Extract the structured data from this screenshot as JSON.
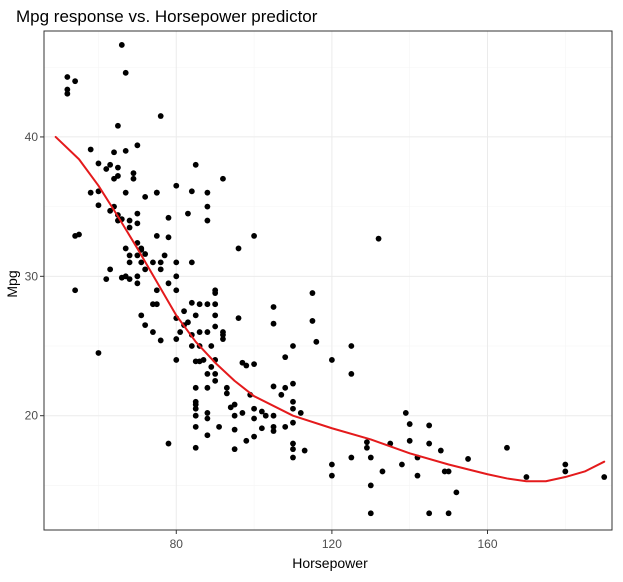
{
  "chart_data": {
    "type": "scatter",
    "title": "Mpg response vs. Horsepower predictor",
    "xlabel": "Horsepower",
    "ylabel": "Mpg",
    "xlim": [
      46,
      192
    ],
    "ylim": [
      11.8,
      47.6
    ],
    "x_major_ticks": [
      80,
      120,
      160
    ],
    "y_major_ticks": [
      20,
      30,
      40
    ],
    "x_minor_ticks": [
      60,
      100,
      140,
      180
    ],
    "y_minor_ticks": [
      15,
      25,
      35,
      45
    ],
    "grid": true,
    "panel_border": true,
    "colors": {
      "points": "#000000",
      "smooth_line": "#e41a1c",
      "grid_major": "#ebebeb",
      "grid_minor": "#f5f5f5",
      "panel_border": "#333333"
    },
    "series": [
      {
        "type": "scatter",
        "points": [
          [
            52,
            44.3
          ],
          [
            52,
            43.4
          ],
          [
            52,
            43.1
          ],
          [
            54,
            44.0
          ],
          [
            54,
            32.9
          ],
          [
            55,
            33.0
          ],
          [
            54,
            29.0
          ],
          [
            58,
            36.0
          ],
          [
            58,
            39.1
          ],
          [
            60,
            38.1
          ],
          [
            60,
            36.1
          ],
          [
            60,
            35.1
          ],
          [
            60,
            24.5
          ],
          [
            62,
            29.8
          ],
          [
            62,
            37.7
          ],
          [
            63,
            38.0
          ],
          [
            63,
            34.7
          ],
          [
            63,
            30.5
          ],
          [
            64,
            35.0
          ],
          [
            64,
            37.0
          ],
          [
            64,
            38.9
          ],
          [
            65,
            34.0
          ],
          [
            65,
            34.4
          ],
          [
            65,
            37.2
          ],
          [
            65,
            37.8
          ],
          [
            66,
            29.9
          ],
          [
            66,
            34.1
          ],
          [
            66,
            46.6
          ],
          [
            65,
            40.8
          ],
          [
            67,
            39.0
          ],
          [
            67,
            36.0
          ],
          [
            67,
            30.0
          ],
          [
            67,
            32.0
          ],
          [
            67,
            44.6
          ],
          [
            68,
            34.0
          ],
          [
            68,
            31.5
          ],
          [
            68,
            33.5
          ],
          [
            68,
            29.8
          ],
          [
            68,
            31.0
          ],
          [
            69,
            37.4
          ],
          [
            69,
            37.0
          ],
          [
            70,
            30.0
          ],
          [
            70,
            31.5
          ],
          [
            70,
            34.5
          ],
          [
            70,
            32.4
          ],
          [
            70,
            33.8
          ],
          [
            70,
            39.4
          ],
          [
            70,
            29.5
          ],
          [
            71,
            27.2
          ],
          [
            71,
            32.0
          ],
          [
            71,
            31.0
          ],
          [
            71,
            31.9
          ],
          [
            72,
            26.5
          ],
          [
            72,
            30.5
          ],
          [
            72,
            31.6
          ],
          [
            72,
            35.7
          ],
          [
            74,
            31.0
          ],
          [
            74,
            26.0
          ],
          [
            74,
            28.0
          ],
          [
            75,
            36.0
          ],
          [
            75,
            29.0
          ],
          [
            75,
            32.9
          ],
          [
            75,
            28.0
          ],
          [
            75,
            36.0
          ],
          [
            76,
            31.0
          ],
          [
            76,
            41.5
          ],
          [
            76,
            25.4
          ],
          [
            76,
            30.5
          ],
          [
            77,
            31.5
          ],
          [
            78,
            29.5
          ],
          [
            78,
            18.0
          ],
          [
            78,
            34.2
          ],
          [
            78,
            32.8
          ],
          [
            80,
            36.5
          ],
          [
            80,
            27.0
          ],
          [
            80,
            31.0
          ],
          [
            80,
            24.0
          ],
          [
            80,
            25.5
          ],
          [
            80,
            29.0
          ],
          [
            80,
            30.0
          ],
          [
            81,
            26.0
          ],
          [
            82,
            26.5
          ],
          [
            82,
            27.5
          ],
          [
            83,
            26.7
          ],
          [
            83,
            34.5
          ],
          [
            84,
            25.8
          ],
          [
            84,
            31.0
          ],
          [
            84,
            28.1
          ],
          [
            84,
            36.1
          ],
          [
            84,
            25.0
          ],
          [
            85,
            23.9
          ],
          [
            85,
            22.0
          ],
          [
            85,
            38.0
          ],
          [
            85,
            27.2
          ],
          [
            85,
            21.0
          ],
          [
            85,
            20.5
          ],
          [
            85,
            20.8
          ],
          [
            85,
            20.0
          ],
          [
            85,
            19.2
          ],
          [
            85,
            17.7
          ],
          [
            86,
            25.0
          ],
          [
            86,
            26.0
          ],
          [
            86,
            28.0
          ],
          [
            86,
            23.9
          ],
          [
            87,
            24.0
          ],
          [
            88,
            23.0
          ],
          [
            88,
            22.0
          ],
          [
            88,
            26.0
          ],
          [
            88,
            18.6
          ],
          [
            88,
            19.8
          ],
          [
            88,
            20.2
          ],
          [
            88,
            28.0
          ],
          [
            88,
            36.0
          ],
          [
            88,
            35.0
          ],
          [
            88,
            34.0
          ],
          [
            89,
            23.5
          ],
          [
            89,
            25.0
          ],
          [
            90,
            24.0
          ],
          [
            90,
            22.5
          ],
          [
            90,
            29.0
          ],
          [
            90,
            28.0
          ],
          [
            90,
            26.4
          ],
          [
            90,
            23.0
          ],
          [
            90,
            27.2
          ],
          [
            90,
            28.8
          ],
          [
            91,
            19.2
          ],
          [
            92,
            26.0
          ],
          [
            92,
            25.5
          ],
          [
            92,
            37.0
          ],
          [
            92,
            25.8
          ],
          [
            93,
            22.0
          ],
          [
            93,
            21.6
          ],
          [
            94,
            20.6
          ],
          [
            95,
            20.0
          ],
          [
            95,
            19.0
          ],
          [
            95,
            17.6
          ],
          [
            95,
            20.8
          ],
          [
            96,
            32.0
          ],
          [
            96,
            27.0
          ],
          [
            97,
            20.2
          ],
          [
            97,
            23.8
          ],
          [
            98,
            23.6
          ],
          [
            98,
            18.2
          ],
          [
            99,
            21.5
          ],
          [
            100,
            20.5
          ],
          [
            100,
            23.7
          ],
          [
            100,
            19.8
          ],
          [
            100,
            32.9
          ],
          [
            100,
            18.5
          ],
          [
            102,
            20.3
          ],
          [
            102,
            19.1
          ],
          [
            103,
            20.0
          ],
          [
            105,
            26.6
          ],
          [
            105,
            22.1
          ],
          [
            105,
            19.2
          ],
          [
            105,
            27.8
          ],
          [
            105,
            20.0
          ],
          [
            105,
            18.9
          ],
          [
            107,
            21.5
          ],
          [
            108,
            24.2
          ],
          [
            108,
            22.0
          ],
          [
            108,
            19.2
          ],
          [
            110,
            18.0
          ],
          [
            110,
            19.5
          ],
          [
            110,
            20.5
          ],
          [
            110,
            17.0
          ],
          [
            110,
            25.0
          ],
          [
            110,
            22.3
          ],
          [
            110,
            17.6
          ],
          [
            110,
            21.0
          ],
          [
            112,
            20.2
          ],
          [
            113,
            17.5
          ],
          [
            115,
            28.8
          ],
          [
            115,
            26.8
          ],
          [
            116,
            25.3
          ],
          [
            120,
            24.0
          ],
          [
            120,
            16.5
          ],
          [
            120,
            15.7
          ],
          [
            125,
            23.0
          ],
          [
            125,
            25.0
          ],
          [
            125,
            17.0
          ],
          [
            129,
            17.7
          ],
          [
            129,
            18.1
          ],
          [
            130,
            17.0
          ],
          [
            130,
            15.0
          ],
          [
            130,
            13.0
          ],
          [
            132,
            32.7
          ],
          [
            133,
            16.0
          ],
          [
            135,
            18.0
          ],
          [
            138,
            16.5
          ],
          [
            139,
            20.2
          ],
          [
            140,
            19.4
          ],
          [
            140,
            18.2
          ],
          [
            142,
            15.7
          ],
          [
            142,
            17.0
          ],
          [
            145,
            18.0
          ],
          [
            145,
            19.3
          ],
          [
            145,
            13.0
          ],
          [
            148,
            17.5
          ],
          [
            149,
            16.0
          ],
          [
            150,
            16.0
          ],
          [
            150,
            13.0
          ],
          [
            152,
            14.5
          ],
          [
            155,
            16.9
          ],
          [
            165,
            17.7
          ],
          [
            170,
            15.6
          ],
          [
            180,
            16.5
          ],
          [
            180,
            16.0
          ],
          [
            190,
            15.6
          ]
        ]
      },
      {
        "type": "line",
        "points": [
          [
            49,
            40.0
          ],
          [
            55,
            38.4
          ],
          [
            60,
            36.5
          ],
          [
            65,
            34.3
          ],
          [
            70,
            32.0
          ],
          [
            75,
            29.6
          ],
          [
            80,
            27.2
          ],
          [
            85,
            25.3
          ],
          [
            90,
            23.8
          ],
          [
            95,
            22.5
          ],
          [
            100,
            21.4
          ],
          [
            110,
            20.0
          ],
          [
            120,
            19.1
          ],
          [
            130,
            18.3
          ],
          [
            140,
            17.3
          ],
          [
            150,
            16.5
          ],
          [
            160,
            15.8
          ],
          [
            165,
            15.5
          ],
          [
            170,
            15.3
          ],
          [
            175,
            15.3
          ],
          [
            180,
            15.6
          ],
          [
            185,
            16.0
          ],
          [
            190,
            16.7
          ]
        ]
      }
    ]
  }
}
